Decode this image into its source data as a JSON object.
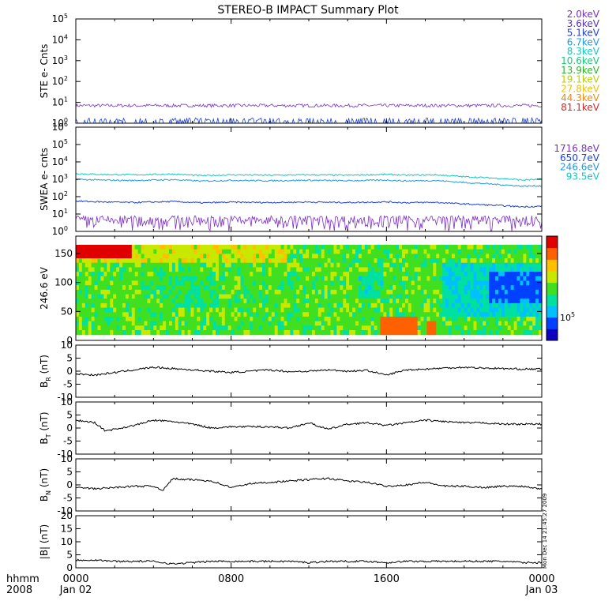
{
  "title": "STEREO-B IMPACT Summary Plot",
  "footer": {
    "units_label": "hhmm",
    "year_label": "2008",
    "side_stamp": "Mon Dec 14 21:45:27 2009"
  },
  "chart_data": [
    {
      "id": "ste",
      "type": "line",
      "ylabel": "STE e- Cnts",
      "yscale": "log",
      "ylim": [
        1,
        100000
      ],
      "yticks": [
        {
          "label": "10",
          "exp": "0",
          "value": 1
        },
        {
          "label": "10",
          "exp": "1",
          "value": 10
        },
        {
          "label": "10",
          "exp": "2",
          "value": 100
        },
        {
          "label": "10",
          "exp": "3",
          "value": 1000
        },
        {
          "label": "10",
          "exp": "4",
          "value": 10000
        },
        {
          "label": "10",
          "exp": "5",
          "value": 100000
        }
      ],
      "legend_placement": "right",
      "legend": [
        {
          "label": "2.0keV",
          "color": "#7a2ec8"
        },
        {
          "label": "3.6keV",
          "color": "#5a2fc0"
        },
        {
          "label": "5.1keV",
          "color": "#1a3fdc"
        },
        {
          "label": "6.7keV",
          "color": "#1e9be0"
        },
        {
          "label": "8.3keV",
          "color": "#12c8c0"
        },
        {
          "label": "10.6keV",
          "color": "#18c878"
        },
        {
          "label": "13.9keV",
          "color": "#2ab42a"
        },
        {
          "label": "19.1keV",
          "color": "#b4d000"
        },
        {
          "label": "27.8keV",
          "color": "#f0c000"
        },
        {
          "label": "44.3keV",
          "color": "#f08a00"
        },
        {
          "label": "81.1keV",
          "color": "#e02020"
        }
      ],
      "series": [
        {
          "name": "2.0keV",
          "color": "#7a2ec8",
          "level": 7,
          "spread": 0.08
        },
        {
          "name": "3.6keV",
          "color": "#1a3fdc",
          "level": 1,
          "spread": 0.2
        }
      ]
    },
    {
      "id": "swea",
      "type": "line",
      "ylabel": "SWEA e- cnts",
      "yscale": "log",
      "ylim": [
        1,
        1000000
      ],
      "yticks": [
        {
          "label": "10",
          "exp": "0",
          "value": 1
        },
        {
          "label": "10",
          "exp": "1",
          "value": 10
        },
        {
          "label": "10",
          "exp": "2",
          "value": 100
        },
        {
          "label": "10",
          "exp": "3",
          "value": 1000
        },
        {
          "label": "10",
          "exp": "4",
          "value": 10000
        },
        {
          "label": "10",
          "exp": "5",
          "value": 100000
        },
        {
          "label": "10",
          "exp": "6",
          "value": 1000000
        }
      ],
      "legend_placement": "right",
      "legend": [
        {
          "label": "1716.8eV",
          "color": "#7a2ec8"
        },
        {
          "label": "650.7eV",
          "color": "#1a3fdc"
        },
        {
          "label": "246.6eV",
          "color": "#1e9be0"
        },
        {
          "label": "93.5eV",
          "color": "#12c8c0"
        }
      ],
      "series": [
        {
          "name": "93.5eV",
          "color": "#12c8c0",
          "x": [
            0,
            1.2,
            3,
            5,
            6.5,
            8,
            10,
            12,
            14,
            16,
            17,
            18.5,
            20,
            22,
            23,
            24
          ],
          "y": [
            2100,
            1900,
            1800,
            2000,
            1600,
            1800,
            1700,
            1800,
            1700,
            1900,
            1700,
            1800,
            1400,
            1100,
            900,
            1000
          ]
        },
        {
          "name": "246.6eV",
          "color": "#1e9be0",
          "x": [
            0,
            1.2,
            3,
            5,
            6.5,
            8,
            10,
            12,
            14,
            16,
            17,
            18.5,
            20,
            22,
            23,
            24
          ],
          "y": [
            1000,
            900,
            850,
            950,
            780,
            870,
            820,
            880,
            820,
            900,
            800,
            850,
            650,
            480,
            400,
            420
          ]
        },
        {
          "name": "650.7eV",
          "color": "#1a3fdc",
          "x": [
            0,
            1.2,
            3,
            5,
            6.5,
            8,
            10,
            12,
            14,
            16,
            17,
            18.5,
            20,
            22,
            23,
            24
          ],
          "y": [
            55,
            50,
            46,
            52,
            44,
            48,
            46,
            49,
            46,
            50,
            45,
            47,
            38,
            30,
            26,
            28
          ]
        },
        {
          "name": "1716.8eV",
          "color": "#7a2ec8",
          "level": 3.5,
          "spread": 0.45
        }
      ]
    },
    {
      "id": "pad",
      "type": "heatmap",
      "ylabel": "246.6 eV",
      "ylim": [
        0,
        180
      ],
      "yticks": [
        0,
        50,
        100,
        150
      ],
      "colorbar_label": "10",
      "colorbar_exp": "5",
      "colorbar_colors": [
        "#1000c0",
        "#0040ff",
        "#00c0ff",
        "#00e0a0",
        "#40e020",
        "#c8e800",
        "#ffc000",
        "#ff6000",
        "#e00000"
      ]
    },
    {
      "id": "br",
      "type": "line",
      "ylabel_main": "B",
      "ylabel_sub": "R",
      "ylabel_rest": " (nT)",
      "ylim": [
        -10,
        10
      ],
      "yticks": [
        -10,
        -5,
        0,
        5,
        10
      ],
      "series": [
        {
          "x": [
            0,
            1,
            2,
            3,
            4,
            5,
            6,
            7,
            8,
            9,
            10,
            11,
            12,
            13,
            14,
            15,
            16,
            17,
            18,
            19,
            20,
            21,
            22,
            23,
            24
          ],
          "y": [
            -1,
            -1.5,
            -0.5,
            0.5,
            1.5,
            1,
            0.5,
            0,
            -0.5,
            0,
            0.5,
            -0.2,
            0,
            0.5,
            0,
            0.3,
            -1.5,
            0.5,
            0.8,
            1.2,
            1.5,
            1.2,
            1,
            0.8,
            0.8
          ]
        }
      ]
    },
    {
      "id": "bt",
      "type": "line",
      "ylabel_main": "B",
      "ylabel_sub": "T",
      "ylabel_rest": " (nT)",
      "ylim": [
        -10,
        10
      ],
      "yticks": [
        -10,
        -5,
        0,
        5,
        10
      ],
      "series": [
        {
          "x": [
            0,
            1,
            1.5,
            2,
            3,
            4,
            5,
            6,
            7,
            8,
            9,
            10,
            11,
            12,
            13,
            14,
            15,
            16,
            17,
            18,
            19,
            20,
            21,
            22,
            23,
            24
          ],
          "y": [
            3,
            2,
            -1,
            -0.5,
            1,
            3,
            2.5,
            1.5,
            0,
            0.5,
            0.5,
            0.5,
            0,
            2,
            -0.5,
            1.5,
            2,
            1,
            2,
            3,
            2.5,
            2,
            2,
            1.5,
            1.5,
            1.5
          ]
        }
      ]
    },
    {
      "id": "bn",
      "type": "line",
      "ylabel_main": "B",
      "ylabel_sub": "N",
      "ylabel_rest": " (nT)",
      "ylim": [
        -10,
        10
      ],
      "yticks": [
        -10,
        -5,
        0,
        5,
        10
      ],
      "series": [
        {
          "x": [
            0,
            1,
            2,
            3,
            4,
            4.5,
            5,
            5.5,
            6,
            7,
            8,
            9,
            10,
            11,
            12,
            13,
            14,
            15,
            16,
            17,
            18,
            19,
            20,
            21,
            22,
            23,
            24
          ],
          "y": [
            -1,
            -1.5,
            -1,
            -0.5,
            -0.5,
            -2,
            2.5,
            2,
            2,
            1.5,
            -1,
            0.5,
            1,
            1.5,
            2,
            2.5,
            1.5,
            1,
            -0.5,
            0,
            1,
            -0.5,
            -0.5,
            -1,
            -0.5,
            -0.5,
            -1.5
          ]
        }
      ]
    },
    {
      "id": "bmag",
      "type": "line",
      "ylabel": "|B| (nT)",
      "ylim": [
        0,
        20
      ],
      "yticks": [
        0,
        5,
        10,
        15,
        20
      ],
      "series": [
        {
          "x": [
            0,
            1,
            2,
            3,
            4,
            5,
            6,
            7,
            8,
            9,
            10,
            11,
            12,
            13,
            14,
            15,
            16,
            17,
            18,
            19,
            20,
            21,
            22,
            23,
            24
          ],
          "y": [
            3,
            3,
            2.5,
            2.5,
            2.5,
            1.5,
            2,
            2.5,
            2.5,
            2.5,
            2.5,
            2.5,
            2,
            2.5,
            2.5,
            2.5,
            2,
            2.5,
            2.5,
            2.5,
            2.5,
            2.5,
            2.5,
            2,
            2
          ]
        }
      ]
    }
  ],
  "xaxis": {
    "ticks": [
      {
        "x": 0,
        "label": "0000",
        "sub": "Jan 02"
      },
      {
        "x": 8,
        "label": "0800",
        "sub": ""
      },
      {
        "x": 16,
        "label": "1600",
        "sub": ""
      },
      {
        "x": 24,
        "label": "0000",
        "sub": "Jan 03"
      }
    ],
    "xlim": [
      0,
      24
    ]
  }
}
